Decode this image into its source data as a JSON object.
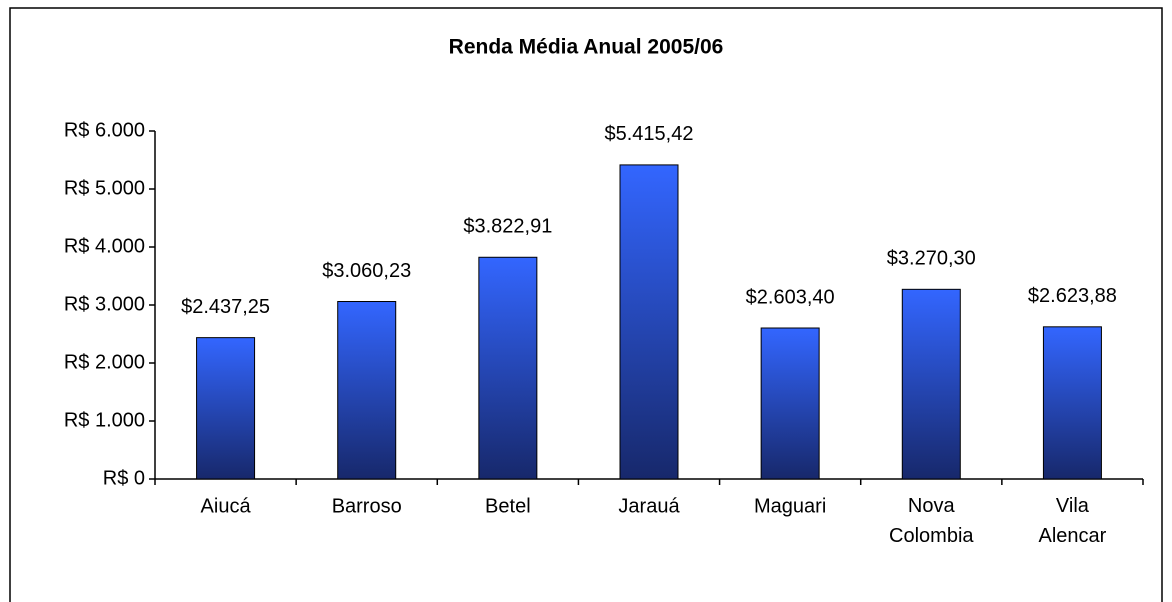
{
  "chart_data": {
    "type": "bar",
    "title": "Renda Média Anual 2005/06",
    "categories": [
      "Aiucá",
      "Barroso",
      "Betel",
      "Jarauá",
      "Maguari",
      "Nova Colombia",
      "Vila Alencar"
    ],
    "values": [
      2437.25,
      3060.23,
      3822.91,
      5415.42,
      2603.4,
      3270.3,
      2623.88
    ],
    "value_labels": [
      "$2.437,25",
      "$3.060,23",
      "$3.822,91",
      "$5.415,42",
      "$2.603,40",
      "$3.270,30",
      "$2.623,88"
    ],
    "color": "#3366ff",
    "ylim": [
      0,
      6000
    ],
    "yticks": [
      {
        "value": 0,
        "label": "R$ 0"
      },
      {
        "value": 1000,
        "label": "R$ 1.000"
      },
      {
        "value": 2000,
        "label": "R$ 2.000"
      },
      {
        "value": 3000,
        "label": "R$ 3.000"
      },
      {
        "value": 4000,
        "label": "R$ 4.000"
      },
      {
        "value": 5000,
        "label": "R$ 5.000"
      },
      {
        "value": 6000,
        "label": "R$ 6.000"
      }
    ],
    "grid": false
  }
}
